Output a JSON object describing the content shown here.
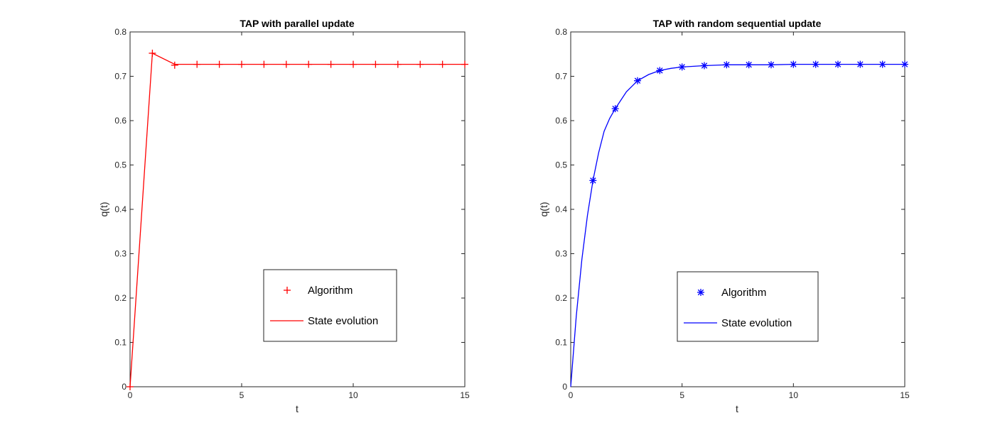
{
  "chart_data": [
    {
      "type": "line",
      "title": "TAP with parallel update",
      "xlabel": "t",
      "ylabel": "q(t)",
      "xlim": [
        0,
        15
      ],
      "ylim": [
        0,
        0.8
      ],
      "xticks": [
        "0",
        "5",
        "10",
        "15"
      ],
      "yticks": [
        "0",
        "0.1",
        "0.2",
        "0.3",
        "0.4",
        "0.5",
        "0.6",
        "0.7",
        "0.8"
      ],
      "grid": false,
      "legend_position": "lower-right",
      "series": [
        {
          "name": "Algorithm",
          "style": "marker-plus",
          "color": "#ff0000",
          "x": [
            0,
            1,
            2,
            3,
            4,
            5,
            6,
            7,
            8,
            9,
            10,
            11,
            12,
            13,
            14,
            15
          ],
          "y": [
            0,
            0.752,
            0.725,
            0.727,
            0.727,
            0.727,
            0.727,
            0.727,
            0.727,
            0.727,
            0.727,
            0.727,
            0.727,
            0.727,
            0.727,
            0.727
          ]
        },
        {
          "name": "State evolution",
          "style": "line",
          "color": "#ff0000",
          "x": [
            0,
            1,
            2,
            3,
            4,
            5,
            6,
            7,
            8,
            9,
            10,
            11,
            12,
            13,
            14,
            15
          ],
          "y": [
            0,
            0.752,
            0.727,
            0.727,
            0.727,
            0.727,
            0.727,
            0.727,
            0.727,
            0.727,
            0.727,
            0.727,
            0.727,
            0.727,
            0.727,
            0.727
          ]
        }
      ]
    },
    {
      "type": "line",
      "title": "TAP with random sequential update",
      "xlabel": "t",
      "ylabel": "q(t)",
      "xlim": [
        0,
        15
      ],
      "ylim": [
        0,
        0.8
      ],
      "xticks": [
        "0",
        "5",
        "10",
        "15"
      ],
      "yticks": [
        "0",
        "0.1",
        "0.2",
        "0.3",
        "0.4",
        "0.5",
        "0.6",
        "0.7",
        "0.8"
      ],
      "grid": false,
      "legend_position": "lower-right",
      "series": [
        {
          "name": "Algorithm",
          "style": "marker-asterisk",
          "color": "#0000ff",
          "x": [
            1,
            2,
            3,
            4,
            5,
            6,
            7,
            8,
            9,
            10,
            11,
            12,
            13,
            14,
            15
          ],
          "y": [
            0.465,
            0.627,
            0.69,
            0.713,
            0.721,
            0.724,
            0.726,
            0.726,
            0.726,
            0.727,
            0.727,
            0.727,
            0.727,
            0.727,
            0.727
          ]
        },
        {
          "name": "State evolution",
          "style": "line",
          "color": "#0000ff",
          "x": [
            0,
            0.25,
            0.5,
            0.75,
            1,
            1.25,
            1.5,
            1.75,
            2,
            2.5,
            3,
            3.5,
            4,
            4.5,
            5,
            6,
            7,
            8,
            9,
            10,
            11,
            12,
            13,
            14,
            15
          ],
          "y": [
            0,
            0.159,
            0.287,
            0.386,
            0.465,
            0.527,
            0.576,
            0.605,
            0.627,
            0.665,
            0.69,
            0.704,
            0.713,
            0.718,
            0.721,
            0.724,
            0.726,
            0.726,
            0.726,
            0.727,
            0.727,
            0.727,
            0.727,
            0.727,
            0.727
          ]
        }
      ]
    }
  ]
}
